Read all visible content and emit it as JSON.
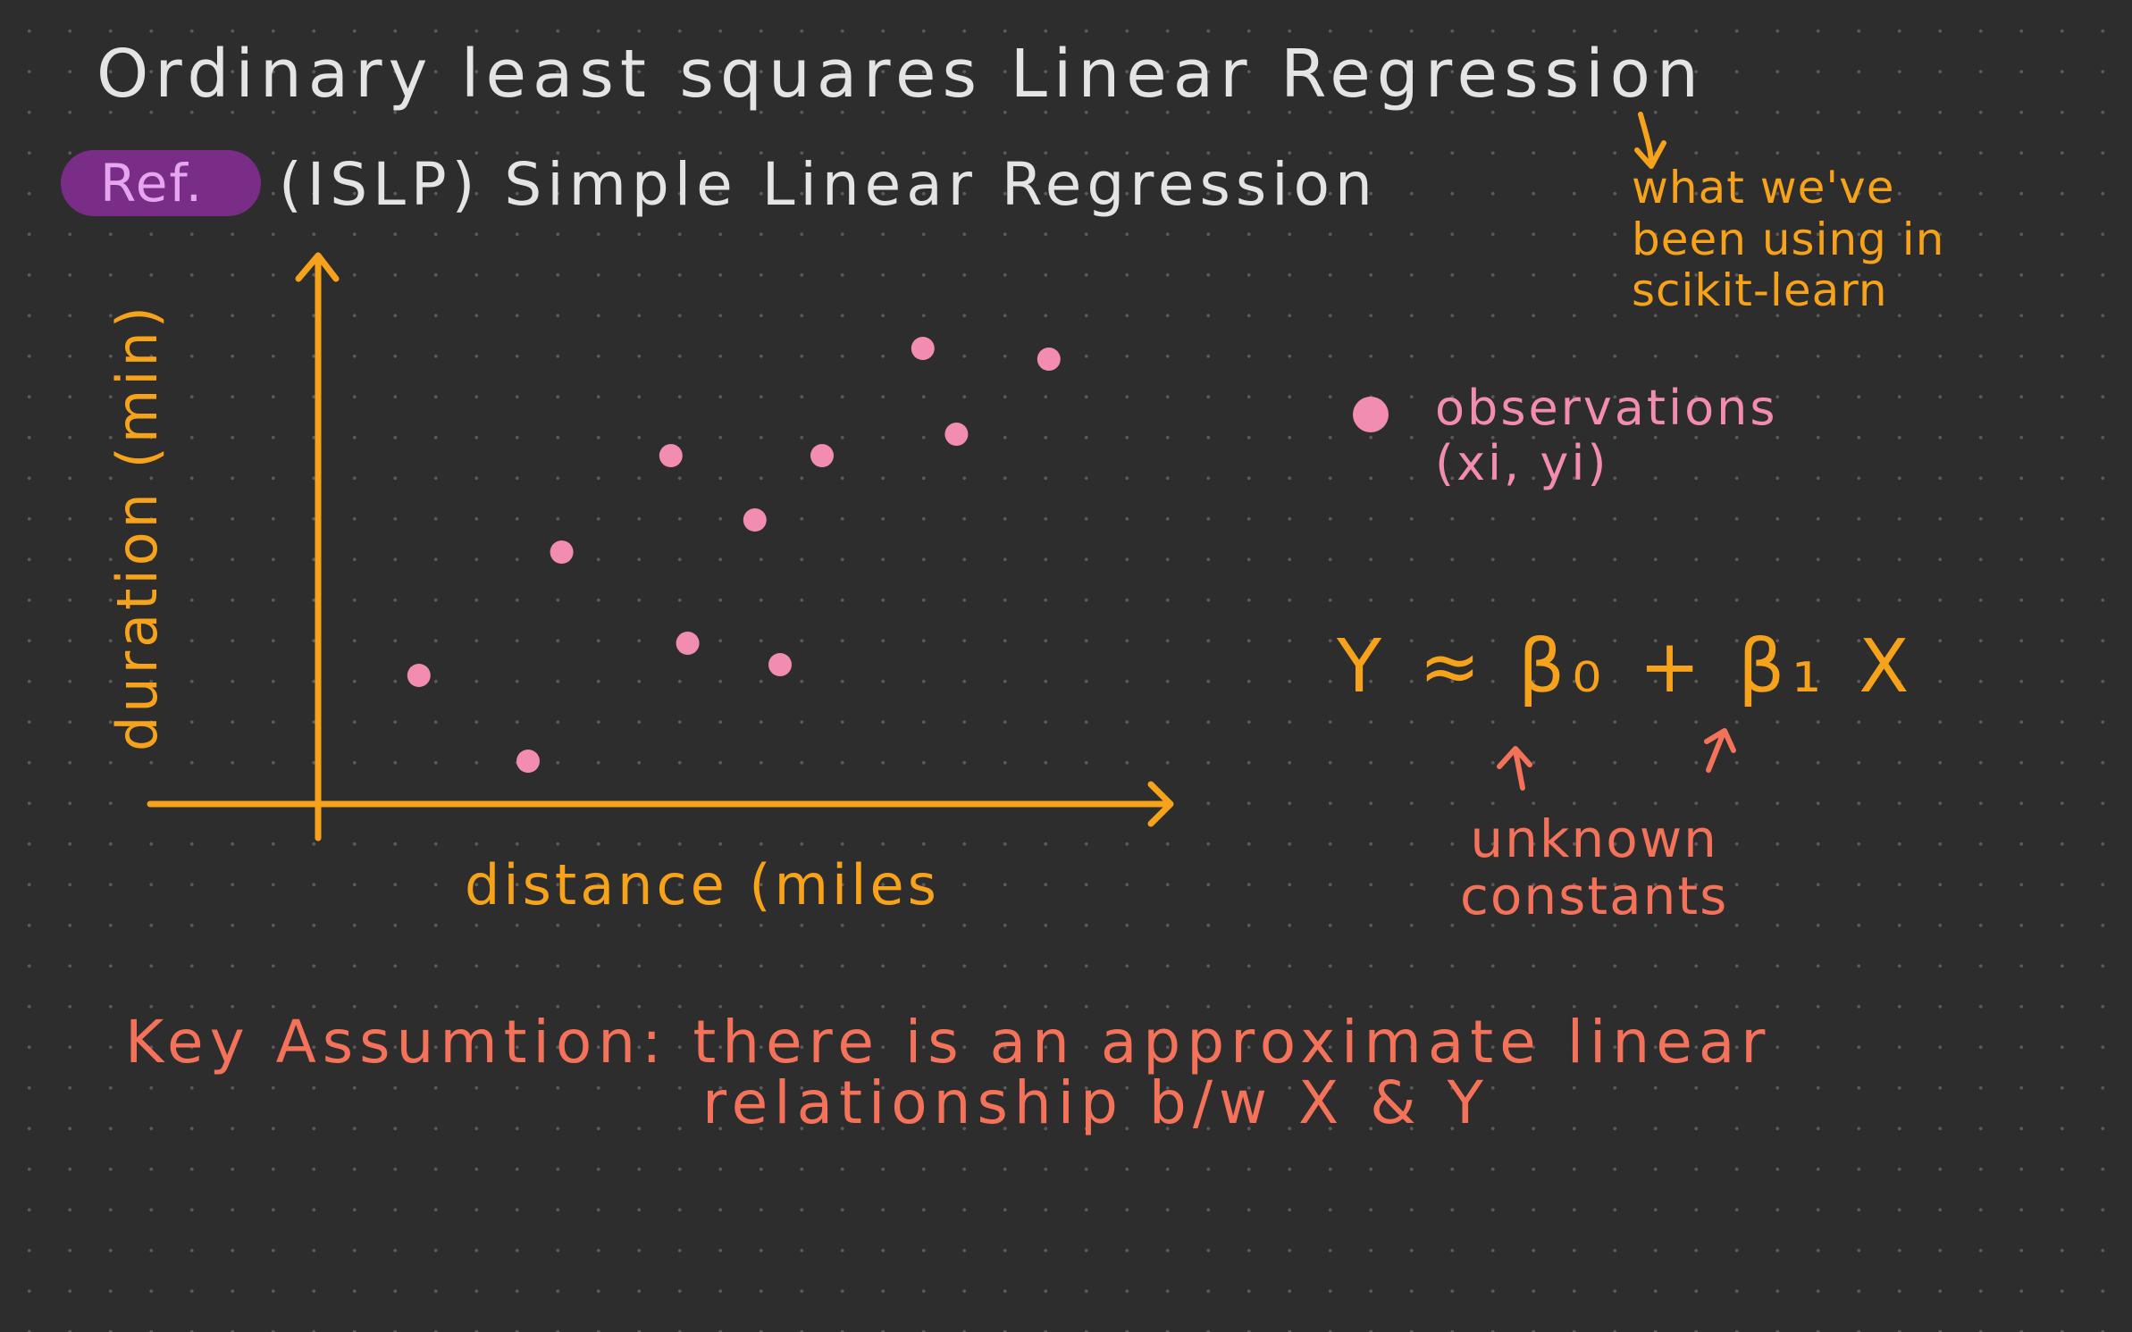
{
  "title": "Ordinary least squares Linear Regression",
  "ref_label": "Ref.",
  "subtitle": "(ISLP) Simple Linear Regression",
  "note": {
    "line1": "what we've",
    "line2": "been using in",
    "line3": "scikit-learn"
  },
  "legend": {
    "line1": "observations",
    "line2": "(xi, yi)"
  },
  "formula": "Y ≈ β₀ + β₁ X",
  "constants": {
    "line1": "unknown",
    "line2": "constants"
  },
  "assumption": {
    "line1": "Key Assumtion: there is an approximate linear",
    "line2": "relationship b/w X & Y"
  },
  "colors": {
    "white": "#e4e4e4",
    "orange": "#f7a21b",
    "coral": "#f4725a",
    "pink": "#f28cb1",
    "badge": "#7a2d87",
    "badge_text": "#e6a6ef"
  },
  "chart_data": {
    "type": "scatter",
    "xlabel": "distance (miles",
    "ylabel": "duration (min)",
    "x": [
      1.2,
      2.5,
      2.9,
      4.2,
      4.4,
      5.2,
      5.5,
      6.0,
      7.2,
      7.6,
      8.7
    ],
    "y": [
      2.4,
      0.8,
      4.7,
      6.5,
      3.0,
      5.3,
      2.6,
      6.5,
      8.5,
      6.9,
      8.3
    ],
    "xlim": [
      0,
      10
    ],
    "ylim": [
      0,
      10
    ],
    "grid": false
  }
}
